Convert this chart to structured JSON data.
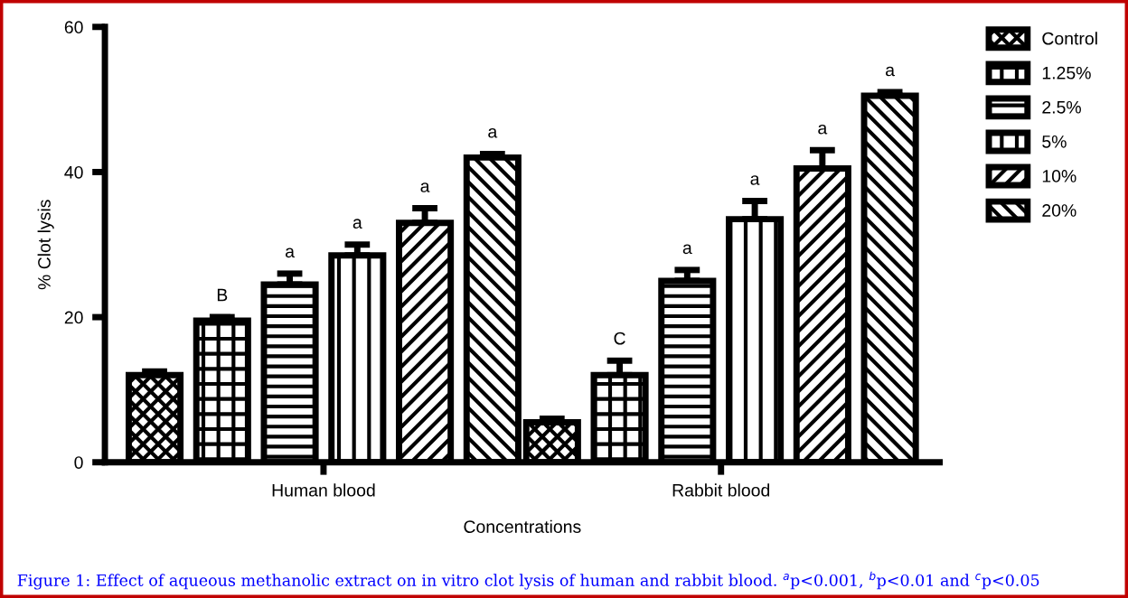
{
  "chart_data": {
    "type": "bar",
    "xlabel": "Concentrations",
    "ylabel": "% Clot lysis",
    "categories": [
      "Human blood",
      "Rabbit blood"
    ],
    "series": [
      {
        "name": "Control",
        "color": "#000000",
        "values": [
          12,
          5.5
        ],
        "errors": [
          0.5,
          0.5
        ]
      },
      {
        "name": "1.25%",
        "color": "#000000",
        "values": [
          19.5,
          12
        ],
        "errors": [
          0.5,
          2
        ],
        "value_labels": [
          "B",
          "C"
        ]
      },
      {
        "name": "2.5%",
        "color": "#000000",
        "values": [
          24.5,
          25
        ],
        "errors": [
          1.5,
          1.5
        ],
        "value_labels": [
          "a",
          "a"
        ]
      },
      {
        "name": "5%",
        "color": "#000000",
        "values": [
          28.5,
          33.5
        ],
        "errors": [
          1.5,
          2.5
        ],
        "value_labels": [
          "a",
          "a"
        ]
      },
      {
        "name": "10%",
        "color": "#000000",
        "values": [
          33,
          40.5
        ],
        "errors": [
          2,
          2.5
        ],
        "value_labels": [
          "a",
          "a"
        ]
      },
      {
        "name": "20%",
        "color": "#000000",
        "values": [
          42,
          50.5
        ],
        "errors": [
          0.5,
          0.5
        ],
        "value_labels": [
          "a",
          "a"
        ]
      }
    ],
    "ylim": [
      0,
      60
    ],
    "yticks": [
      0,
      20,
      40,
      60
    ],
    "grid": false,
    "legend": "top right",
    "annotations": [
      "Figure 1: Effect of aqueous methanolic extract on in vitro clot lysis of human and rabbit blood. $^{a}$p<0.001, $^{b}$p<0.01 and $^{c}$p<0.05"
    ]
  }
}
